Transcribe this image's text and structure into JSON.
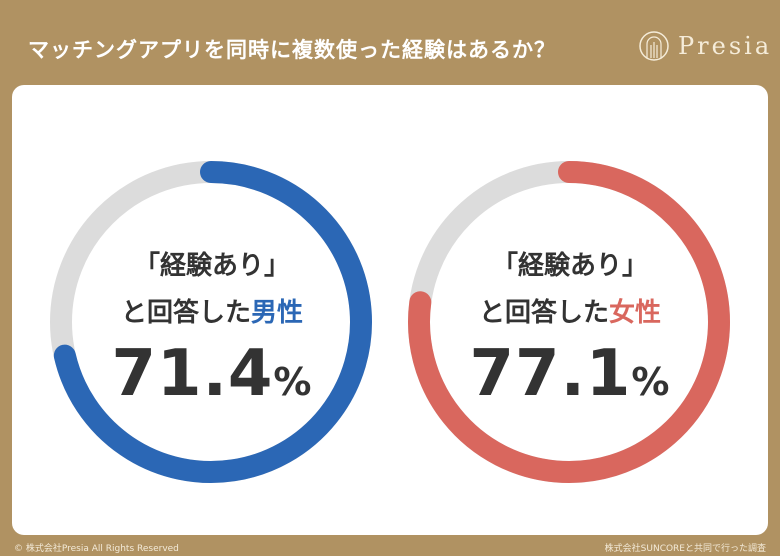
{
  "header": {
    "title": "マッチングアプリを同時に複数使った経験はあるか？",
    "logo_text": "Presia"
  },
  "colors": {
    "background": "#b09262",
    "male": "#2b67b5",
    "female": "#d9675e",
    "track": "#dcdcdc"
  },
  "chart_data": [
    {
      "type": "pie",
      "variant": "donut",
      "label_line1": "「経験あり」",
      "label_prefix": "と回答した",
      "group": "男性",
      "value": 71.4,
      "value_text": "71.4",
      "unit": "%",
      "color": "#2b67b5"
    },
    {
      "type": "pie",
      "variant": "donut",
      "label_line1": "「経験あり」",
      "label_prefix": "と回答した",
      "group": "女性",
      "value": 77.1,
      "value_text": "77.1",
      "unit": "%",
      "color": "#d9675e"
    }
  ],
  "footer": {
    "copyright": "© 株式会社Presia All Rights Reserved",
    "source": "株式会社SUNCOREと共同で行った調査"
  }
}
